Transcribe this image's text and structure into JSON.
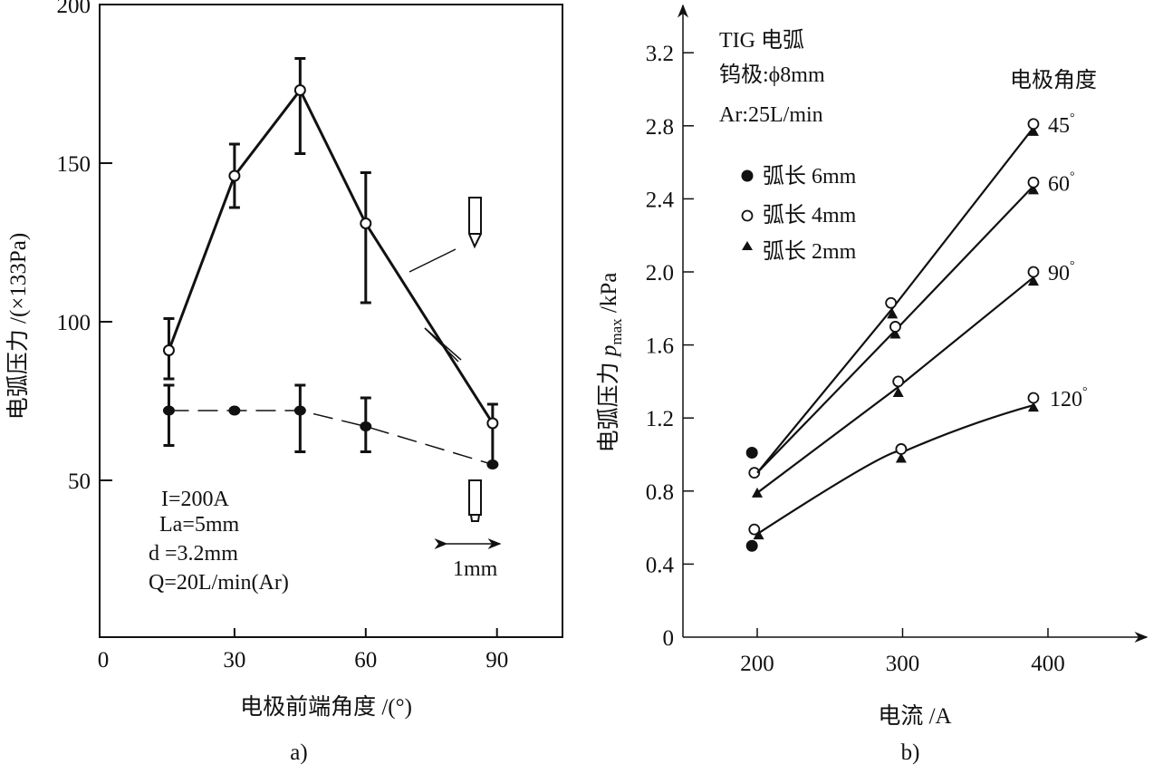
{
  "chart_data": [
    {
      "type": "line",
      "panel_label": "a)",
      "xlabel": "电极前端角度 /(°)",
      "ylabel": "电弧压力 /(×133Pa)",
      "xlim": [
        0,
        105
      ],
      "ylim": [
        0,
        200
      ],
      "xticks": [
        0,
        30,
        60,
        90
      ],
      "yticks": [
        50,
        100,
        150,
        200
      ],
      "grid": false,
      "annotations": [
        "I=200A",
        "La=5mm",
        "d =3.2mm",
        "Q=20L/min(Ar)",
        "1mm"
      ],
      "series": [
        {
          "name": "pointed electrode",
          "marker": "open-circle",
          "line": "solid",
          "x": [
            15,
            30,
            45,
            60,
            89
          ],
          "y": [
            91,
            146,
            173,
            131,
            68
          ],
          "err_low": [
            82,
            136,
            153,
            106,
            55
          ],
          "err_high": [
            101,
            156,
            183,
            147,
            74
          ]
        },
        {
          "name": "truncated electrode (1mm flat tip)",
          "marker": "filled-circle",
          "line": "dashed",
          "x": [
            15,
            30,
            45,
            60,
            89
          ],
          "y": [
            72,
            72,
            72,
            67,
            55
          ],
          "err_low": [
            61,
            null,
            59,
            59,
            null
          ],
          "err_high": [
            80,
            null,
            80,
            76,
            null
          ]
        }
      ]
    },
    {
      "type": "line",
      "panel_label": "b)",
      "xlabel": "电流 /A",
      "ylabel_main": "电弧压力 ",
      "ylabel_p": "p",
      "ylabel_sub": "max",
      "ylabel_unit": " /kPa",
      "xlim": [
        150,
        420
      ],
      "ylim": [
        0,
        3.4
      ],
      "xticks": [
        200,
        300,
        400
      ],
      "yticks": [
        0,
        0.4,
        0.8,
        1.2,
        1.6,
        2.0,
        2.4,
        2.8,
        3.2
      ],
      "ytick_labels": [
        "0",
        "0.4",
        "0.8",
        "1.2",
        "1.6",
        "2.0",
        "2.4",
        "2.8",
        "3.2"
      ],
      "grid": false,
      "info": [
        "TIG 电弧",
        "钨极:ϕ8mm",
        "Ar:25L/min"
      ],
      "legend_title": "电极角度",
      "legend": [
        {
          "marker": "filled-circle",
          "label": "弧长 6mm"
        },
        {
          "marker": "open-circle",
          "label": "弧长 4mm"
        },
        {
          "marker": "triangle",
          "label": "弧长 2mm"
        }
      ],
      "legend_placement": "top-left",
      "series": [
        {
          "name": "45°",
          "line_x": [
            200,
            293,
            390
          ],
          "line_y": [
            0.9,
            1.8,
            2.79
          ],
          "open": {
            "x": [
              198,
              292,
              390
            ],
            "y": [
              0.9,
              1.83,
              2.81
            ]
          },
          "tri": {
            "x": [
              293,
              390
            ],
            "y": [
              1.77,
              2.77
            ]
          }
        },
        {
          "name": "60°",
          "line_x": [
            200,
            295,
            390
          ],
          "line_y": [
            0.9,
            1.68,
            2.47
          ],
          "open": {
            "x": [
              295,
              390
            ],
            "y": [
              1.7,
              2.49
            ]
          },
          "tri": {
            "x": [
              295,
              390
            ],
            "y": [
              1.66,
              2.45
            ]
          }
        },
        {
          "name": "90°",
          "line_x": [
            200,
            297,
            390
          ],
          "line_y": [
            0.79,
            1.37,
            1.97
          ],
          "open": {
            "x": [
              297,
              390
            ],
            "y": [
              1.4,
              2.0
            ]
          },
          "tri": {
            "x": [
              200,
              297,
              390
            ],
            "y": [
              0.79,
              1.34,
              1.95
            ]
          }
        },
        {
          "name": "120°",
          "line_x": [
            201,
            299,
            390
          ],
          "line_y": [
            0.57,
            1.01,
            1.27
          ],
          "open": {
            "x": [
              198,
              299,
              390
            ],
            "y": [
              0.59,
              1.03,
              1.31
            ]
          },
          "tri": {
            "x": [
              201,
              299,
              390
            ],
            "y": [
              0.56,
              0.98,
              1.26
            ]
          }
        }
      ],
      "filled": {
        "x": [
          197,
          197
        ],
        "y": [
          1.01,
          0.5
        ]
      }
    }
  ]
}
